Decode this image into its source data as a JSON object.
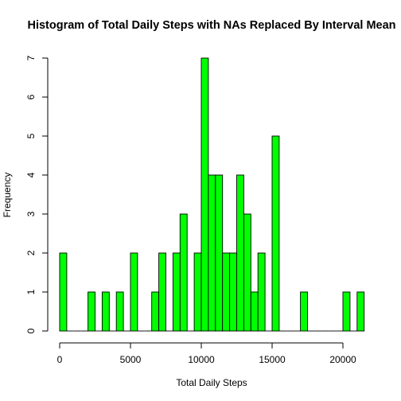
{
  "chart_data": {
    "type": "bar",
    "title": "Histogram of Total Daily Steps with NAs Replaced By Interval Mean",
    "xlabel": "Total Daily Steps",
    "ylabel": "Frequency",
    "bar_color": "#00ff00",
    "bin_width": 500,
    "bin_start": 0,
    "bin_end": 21500,
    "frequencies": [
      2,
      0,
      0,
      0,
      1,
      0,
      1,
      0,
      1,
      0,
      2,
      0,
      0,
      1,
      2,
      0,
      2,
      3,
      0,
      2,
      7,
      4,
      4,
      2,
      2,
      4,
      3,
      1,
      2,
      0,
      5,
      0,
      0,
      0,
      1,
      0,
      0,
      0,
      0,
      0,
      1,
      0,
      1
    ],
    "xlim": [
      0,
      21500
    ],
    "ylim": [
      0,
      7
    ],
    "x_ticks": [
      0,
      5000,
      10000,
      15000,
      20000
    ],
    "x_tick_labels": [
      "0",
      "5000",
      "10000",
      "15000",
      "20000"
    ],
    "y_ticks": [
      0,
      1,
      2,
      3,
      4,
      5,
      6,
      7
    ],
    "y_tick_labels": [
      "0",
      "1",
      "2",
      "3",
      "4",
      "5",
      "6",
      "7"
    ]
  }
}
